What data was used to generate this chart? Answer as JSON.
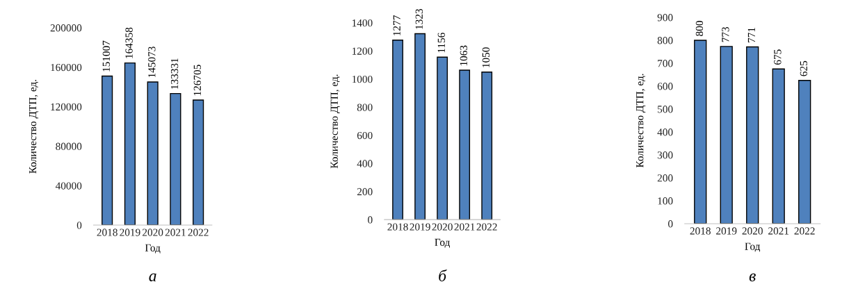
{
  "chart_data": [
    {
      "type": "bar",
      "categories": [
        "2018",
        "2019",
        "2020",
        "2021",
        "2022"
      ],
      "values": [
        151007,
        164358,
        145073,
        133331,
        126705
      ],
      "color": "#4f81bd",
      "xlabel": "Год",
      "ylabel": "Количество ДТП, ед.",
      "ylim": [
        0,
        200000
      ],
      "yticks": [
        0,
        40000,
        80000,
        120000,
        160000,
        200000
      ],
      "data_labels": true,
      "annotations": [
        "а"
      ]
    },
    {
      "type": "bar",
      "categories": [
        "2018",
        "2019",
        "2020",
        "2021",
        "2022"
      ],
      "values": [
        1277,
        1323,
        1156,
        1063,
        1050
      ],
      "data_labels": true,
      "color": "#4f81bd",
      "xlabel": "Год",
      "ylabel": "Количество ДТП, ед.",
      "ylim": [
        0,
        1400
      ],
      "yticks": [
        0,
        200,
        400,
        600,
        800,
        1000,
        1200,
        1400
      ],
      "annotations": [
        "б"
      ]
    },
    {
      "type": "bar",
      "categories": [
        "2018",
        "2019",
        "2020",
        "2021",
        "2022"
      ],
      "values": [
        800,
        773,
        771,
        675,
        625
      ],
      "color": "#4f81bd",
      "xlabel": "Год",
      "ylabel": "Количество ДТП, ед.",
      "ylim": [
        0,
        900
      ],
      "yticks": [
        0,
        100,
        200,
        300,
        400,
        500,
        600,
        700,
        800,
        900
      ],
      "data_labels": true,
      "annotations": [
        "в"
      ]
    }
  ]
}
